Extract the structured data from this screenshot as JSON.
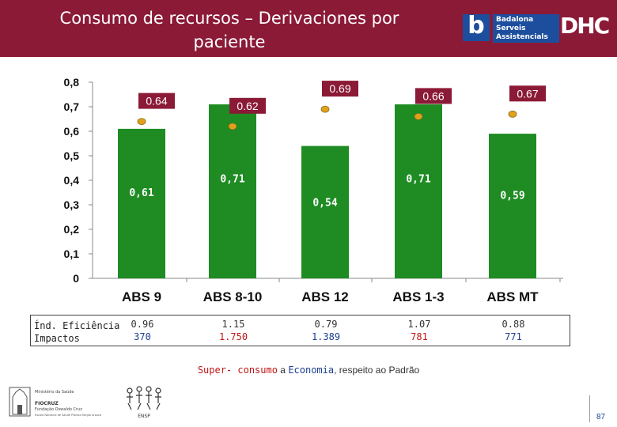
{
  "header": {
    "title_line1": "Consumo de recursos – Derivaciones por",
    "title_line2": "paciente",
    "logo_b": "b",
    "logo_text_lines": [
      "Badalona",
      "Serveis",
      "Assistencials"
    ],
    "logo_dhc": "DHC",
    "bg_color": "#8b1a36"
  },
  "chart_data": {
    "type": "bar",
    "categories": [
      "ABS 9",
      "ABS 8-10",
      "ABS 12",
      "ABS 1-3",
      "ABS MT"
    ],
    "values": [
      0.61,
      0.71,
      0.54,
      0.71,
      0.59
    ],
    "value_labels": [
      "0,61",
      "0,71",
      "0,54",
      "0,71",
      "0,59"
    ],
    "standard_values": [
      0.64,
      0.62,
      0.69,
      0.66,
      0.67
    ],
    "standard_labels": [
      "0.64",
      "0.62",
      "0.69",
      "0.66",
      "0.67"
    ],
    "y_ticks": [
      "0",
      "0,1",
      "0,2",
      "0,3",
      "0,4",
      "0,5",
      "0,6",
      "0,7",
      "0,8"
    ],
    "ylim": [
      0,
      0.8
    ],
    "bar_color": "#1e8c23",
    "marker_color": "#e0a21b",
    "label_box_color": "#8b1a36"
  },
  "table": {
    "row_label_1": "Índ. Eficiência",
    "row_label_2": "Impactos",
    "efficiency": [
      "0.96",
      "1.15",
      "0.79",
      "1.07",
      "0.88"
    ],
    "impacts": [
      "370",
      "1.750",
      "1.389",
      "781",
      "771"
    ],
    "impact_red": [
      false,
      true,
      false,
      true,
      false
    ]
  },
  "caption": {
    "part1": "Super- consumo",
    "part2": " a ",
    "part3": "Economia",
    "part4": ", respeito ao Padrão"
  },
  "footer": {
    "fiocruz_lines": [
      "Ministério da Saúde",
      "FIOCRUZ",
      "Fundação Oswaldo Cruz",
      "Escola Nacional de Saúde Pública Sergio Arouca"
    ],
    "emblem_text": "ENSP",
    "page_number": "87"
  }
}
